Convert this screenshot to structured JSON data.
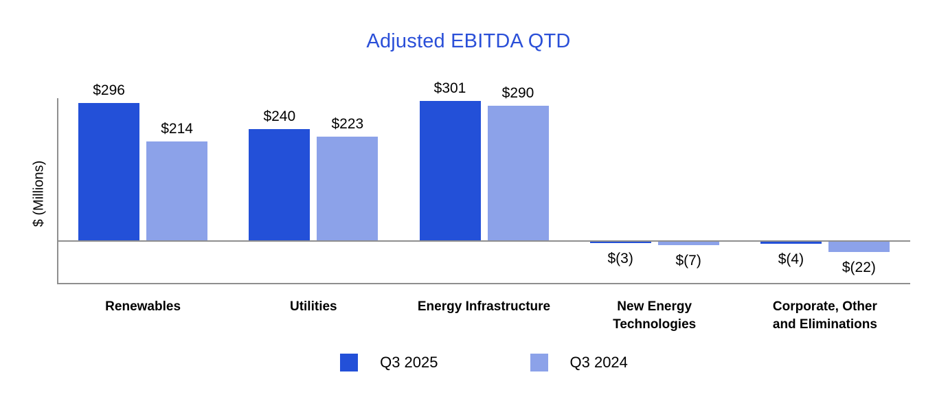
{
  "page": {
    "background": "#ffffff"
  },
  "chart_data": {
    "type": "bar",
    "title": "Adjusted EBITDA QTD",
    "title_color": "#2A4FD8",
    "xlabel": "",
    "ylabel": "$ (Millions)",
    "ylim": [
      -90,
      307
    ],
    "grid": false,
    "legend_position": "bottom",
    "axis_color": "#8E8E8E",
    "value_label_color": "#000000",
    "category_label_color": "#000000",
    "categories": [
      "Renewables",
      "Utilities",
      "Energy Infrastructure",
      "New Energy Technologies",
      "Corporate, Other and Eliminations"
    ],
    "category_lines": [
      [
        "Renewables"
      ],
      [
        "Utilities"
      ],
      [
        "Energy Infrastructure"
      ],
      [
        "New Energy",
        "Technologies"
      ],
      [
        "Corporate, Other",
        "and Eliminations"
      ]
    ],
    "series": [
      {
        "name": "Q3 2025",
        "color": "#2350D8",
        "values": [
          296,
          240,
          301,
          -3,
          -4
        ],
        "labels": [
          "$296",
          "$240",
          "$301",
          "$(3)",
          "$(4)"
        ]
      },
      {
        "name": "Q3 2024",
        "color": "#8CA2E9",
        "values": [
          214,
          223,
          290,
          -7,
          -22
        ],
        "labels": [
          "$214",
          "$223",
          "$290",
          "$(7)",
          "$(22)"
        ]
      }
    ]
  }
}
